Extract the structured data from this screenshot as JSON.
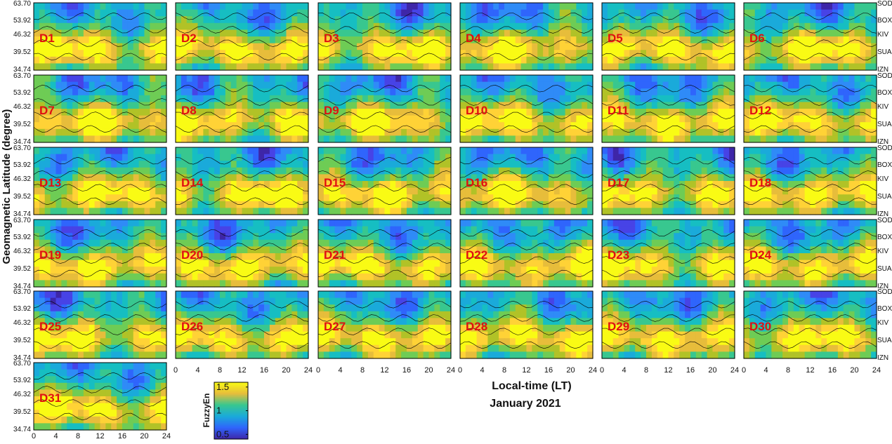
{
  "chart_data": {
    "type": "heatmap",
    "title": "",
    "xlabel": "Local-time (LT)",
    "subtitle": "January 2021",
    "ylabel": "Geomagnetic Latitude (degree)",
    "xlim": [
      0,
      24
    ],
    "ylim": [
      34.74,
      63.7
    ],
    "y_ticks": [
      "63.70",
      "53.92",
      "46.32",
      "39.52",
      "34.74"
    ],
    "x_ticks": [
      "0",
      "4",
      "8",
      "12",
      "16",
      "20",
      "24"
    ],
    "stations": [
      "SOD",
      "BOX",
      "KIV",
      "SUA",
      "IZN"
    ],
    "colorbar": {
      "label": "FuzzyEn",
      "min": 0.4,
      "max": 1.6,
      "ticks": [
        "1.5",
        "1",
        "0.5"
      ]
    },
    "panels": [
      "D1",
      "D2",
      "D3",
      "D4",
      "D5",
      "D6",
      "D7",
      "D8",
      "D9",
      "D10",
      "D11",
      "D12",
      "D13",
      "D14",
      "D15",
      "D16",
      "D17",
      "D18",
      "D19",
      "D20",
      "D21",
      "D22",
      "D23",
      "D24",
      "D25",
      "D26",
      "D27",
      "D28",
      "D29",
      "D30",
      "D31"
    ],
    "colormap": [
      "#3e26a8",
      "#4743e6",
      "#2f65fc",
      "#2f8bf7",
      "#1aaada",
      "#16bec2",
      "#38c78f",
      "#6ecc55",
      "#b1c227",
      "#e7bd3b",
      "#ffd236",
      "#f9fb14"
    ],
    "grid": false
  }
}
